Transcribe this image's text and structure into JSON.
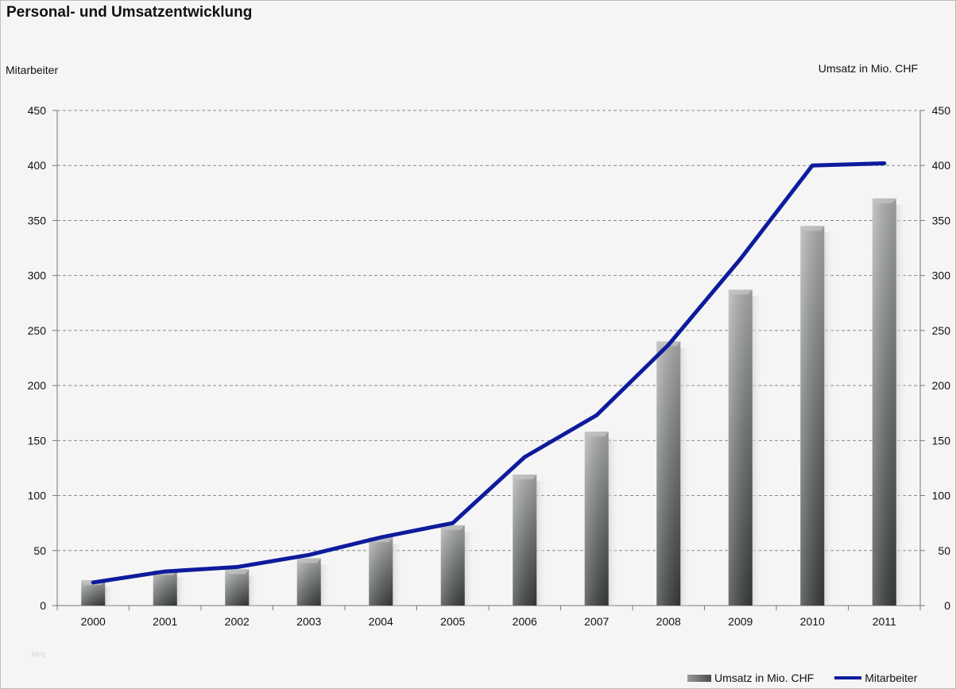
{
  "title": "Personal- und Umsatzentwicklung",
  "ylabel_left": "Mitarbeiter",
  "ylabel_right": "Umsatz in Mio. CHF",
  "watermark": "blog",
  "legend": {
    "bar_label": "Umsatz in Mio. CHF",
    "line_label": "Mitarbeiter"
  },
  "colors": {
    "line": "#0d1b9c",
    "bar_light": "#a9abab",
    "bar_dark": "#3f4242",
    "grid": "#8a8a8a"
  },
  "chart_data": {
    "type": "bar",
    "title": "Personal- und Umsatzentwicklung",
    "categories": [
      "2000",
      "2001",
      "2002",
      "2003",
      "2004",
      "2005",
      "2006",
      "2007",
      "2008",
      "2009",
      "2010",
      "2011"
    ],
    "ylim": [
      0,
      450
    ],
    "yticks": [
      0,
      50,
      100,
      150,
      200,
      250,
      300,
      350,
      400,
      450
    ],
    "grid": true,
    "legend_position": "bottom-right",
    "series": [
      {
        "name": "Umsatz in Mio. CHF",
        "type": "bar",
        "axis": "right",
        "values": [
          23,
          32,
          33,
          43,
          62,
          73,
          119,
          158,
          240,
          287,
          345,
          370
        ]
      },
      {
        "name": "Mitarbeiter",
        "type": "line",
        "axis": "left",
        "values": [
          21,
          31,
          35,
          46,
          62,
          75,
          135,
          173,
          237,
          315,
          400,
          402
        ]
      }
    ]
  }
}
